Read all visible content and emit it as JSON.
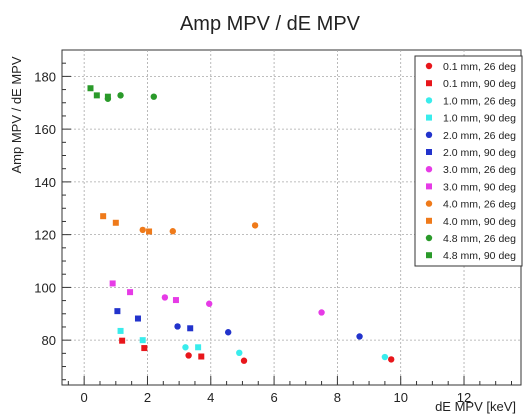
{
  "chart_data": {
    "type": "scatter",
    "title": "Amp MPV / dE MPV",
    "xlabel": "dE MPV [keV]",
    "ylabel": "Amp MPV / dE MPV",
    "xlim": [
      -0.7,
      13.8
    ],
    "ylim": [
      63,
      190
    ],
    "xticks": [
      "0",
      "2",
      "4",
      "6",
      "8",
      "10",
      "12"
    ],
    "xtick_values": [
      0,
      2,
      4,
      6,
      8,
      10,
      12
    ],
    "yticks": [
      "80",
      "100",
      "120",
      "140",
      "160",
      "180"
    ],
    "ytick_values": [
      80,
      100,
      120,
      140,
      160,
      180
    ],
    "grid": true,
    "legend_position": "top-right",
    "series": [
      {
        "name": "0.1 mm, 26 deg",
        "color": "#e8161b",
        "marker": "circle",
        "points": [
          [
            3.3,
            74.2
          ],
          [
            5.05,
            72.2
          ],
          [
            9.7,
            72.7
          ]
        ]
      },
      {
        "name": "0.1 mm, 90 deg",
        "color": "#e8161b",
        "marker": "square",
        "points": [
          [
            1.2,
            79.8
          ],
          [
            1.9,
            77.0
          ],
          [
            3.7,
            73.8
          ]
        ]
      },
      {
        "name": "1.0 mm, 26 deg",
        "color": "#39ecec",
        "marker": "circle",
        "points": [
          [
            3.2,
            77.3
          ],
          [
            4.9,
            75.2
          ],
          [
            9.5,
            73.6
          ]
        ]
      },
      {
        "name": "1.0 mm, 90 deg",
        "color": "#39ecec",
        "marker": "square",
        "points": [
          [
            1.15,
            83.5
          ],
          [
            1.85,
            80.0
          ],
          [
            3.6,
            77.3
          ]
        ]
      },
      {
        "name": "2.0 mm, 26 deg",
        "color": "#2233cc",
        "marker": "circle",
        "points": [
          [
            2.95,
            85.2
          ],
          [
            4.55,
            83.0
          ],
          [
            8.7,
            81.4
          ]
        ]
      },
      {
        "name": "2.0 mm, 90 deg",
        "color": "#2233cc",
        "marker": "square",
        "points": [
          [
            1.05,
            91.0
          ],
          [
            1.7,
            88.2
          ],
          [
            3.35,
            84.5
          ]
        ]
      },
      {
        "name": "3.0 mm, 26 deg",
        "color": "#e63be6",
        "marker": "circle",
        "points": [
          [
            2.55,
            96.2
          ],
          [
            3.95,
            93.8
          ],
          [
            7.5,
            90.5
          ]
        ]
      },
      {
        "name": "3.0 mm, 90 deg",
        "color": "#e63be6",
        "marker": "square",
        "points": [
          [
            0.9,
            101.5
          ],
          [
            1.45,
            98.2
          ],
          [
            2.9,
            95.2
          ]
        ]
      },
      {
        "name": "4.0 mm, 26 deg",
        "color": "#ef7a1a",
        "marker": "circle",
        "points": [
          [
            1.85,
            121.8
          ],
          [
            2.8,
            121.3
          ],
          [
            5.4,
            123.5
          ]
        ]
      },
      {
        "name": "4.0 mm, 90 deg",
        "color": "#ef7a1a",
        "marker": "square",
        "points": [
          [
            0.6,
            127.0
          ],
          [
            1.0,
            124.5
          ],
          [
            2.05,
            121.2
          ]
        ]
      },
      {
        "name": "4.8 mm, 26 deg",
        "color": "#2a9a2a",
        "marker": "circle",
        "points": [
          [
            0.75,
            171.5
          ],
          [
            1.15,
            172.8
          ],
          [
            2.2,
            172.3
          ]
        ]
      },
      {
        "name": "4.8 mm, 90 deg",
        "color": "#2a9a2a",
        "marker": "square",
        "points": [
          [
            0.2,
            175.5
          ],
          [
            0.4,
            172.8
          ],
          [
            0.75,
            172.3
          ]
        ]
      }
    ]
  }
}
